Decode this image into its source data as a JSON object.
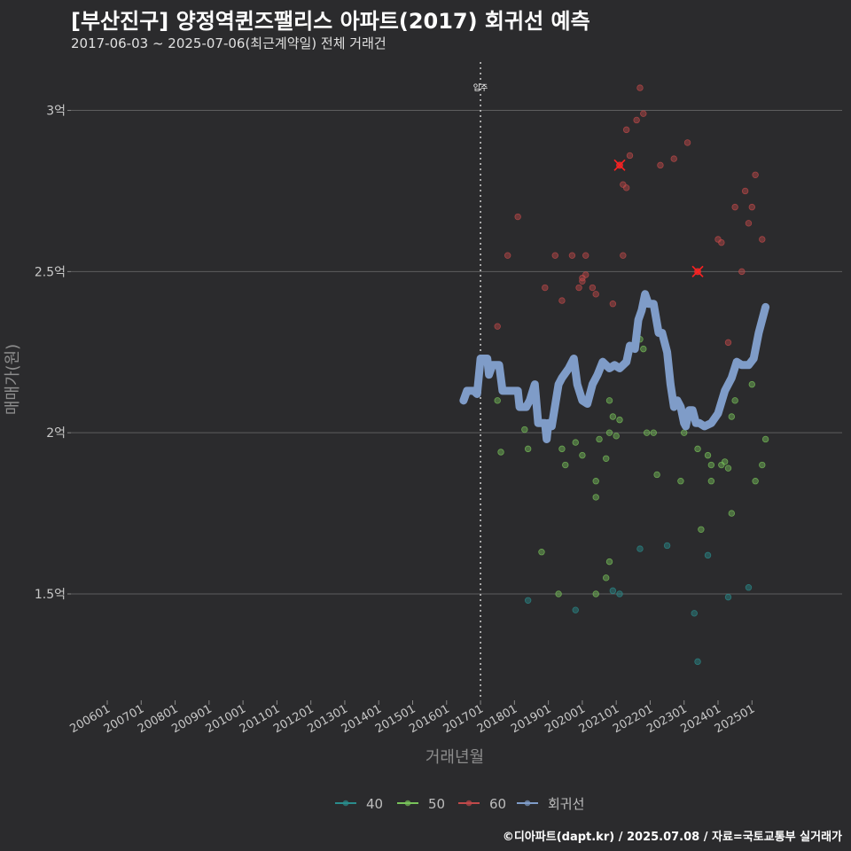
{
  "header": {
    "title": "[부산진구] 양정역퀸즈팰리스 아파트(2017) 회귀선 예측",
    "subtitle": "2017-06-03 ~ 2025-07-06(최근계약일) 전체 거래건"
  },
  "footer": {
    "credit": "©디아파트(dapt.kr) / 2025.07.08 / 자료=국토교통부 실거래가"
  },
  "colors": {
    "background": "#2b2b2d",
    "grid": "#5e5e5e",
    "s40": "#2a8c8c",
    "s50": "#78c25a",
    "s60": "#c0494a",
    "regression": "#7f9cc8",
    "highlight": "#ff2020"
  },
  "chart_data": {
    "type": "scatter",
    "title": "[부산진구] 양정역퀸즈팰리스 아파트(2017) 회귀선 예측",
    "xlabel": "거래년월",
    "ylabel": "매매가(원)",
    "xlim": [
      2006.0,
      2025.75
    ],
    "ylim": [
      1.17,
      3.15
    ],
    "x_ticks": [
      {
        "value": 2006.0,
        "label": "200601"
      },
      {
        "value": 2007.0,
        "label": "200701"
      },
      {
        "value": 2008.0,
        "label": "200801"
      },
      {
        "value": 2009.0,
        "label": "200901"
      },
      {
        "value": 2010.0,
        "label": "201001"
      },
      {
        "value": 2011.0,
        "label": "201101"
      },
      {
        "value": 2012.0,
        "label": "201201"
      },
      {
        "value": 2013.0,
        "label": "201301"
      },
      {
        "value": 2014.0,
        "label": "201401"
      },
      {
        "value": 2015.0,
        "label": "201501"
      },
      {
        "value": 2016.0,
        "label": "201601"
      },
      {
        "value": 2017.0,
        "label": "201701"
      },
      {
        "value": 2018.0,
        "label": "201801"
      },
      {
        "value": 2019.0,
        "label": "201901"
      },
      {
        "value": 2020.0,
        "label": "202001"
      },
      {
        "value": 2021.0,
        "label": "202101"
      },
      {
        "value": 2022.0,
        "label": "202201"
      },
      {
        "value": 2023.0,
        "label": "202301"
      },
      {
        "value": 2024.0,
        "label": "202401"
      },
      {
        "value": 2025.0,
        "label": "202501"
      }
    ],
    "y_ticks": [
      {
        "value": 1.5,
        "label": "1.5억"
      },
      {
        "value": 2.0,
        "label": "2억"
      },
      {
        "value": 2.5,
        "label": "2.5억"
      },
      {
        "value": 3.0,
        "label": "3억"
      }
    ],
    "annotation": {
      "x": 2017.0,
      "label": "입주"
    },
    "legend": [
      {
        "key": "s40",
        "label": "40"
      },
      {
        "key": "s50",
        "label": "50"
      },
      {
        "key": "s60",
        "label": "60"
      },
      {
        "key": "regression",
        "label": "회귀선"
      }
    ],
    "series": [
      {
        "name": "40",
        "key": "s40",
        "points": [
          [
            2018.4,
            1.48
          ],
          [
            2019.8,
            1.45
          ],
          [
            2020.9,
            1.51
          ],
          [
            2021.1,
            1.5
          ],
          [
            2021.7,
            1.64
          ],
          [
            2022.5,
            1.65
          ],
          [
            2023.3,
            1.44
          ],
          [
            2023.4,
            1.29
          ],
          [
            2023.7,
            1.62
          ],
          [
            2024.3,
            1.49
          ],
          [
            2024.9,
            1.52
          ]
        ]
      },
      {
        "name": "50",
        "key": "s50",
        "points": [
          [
            2017.5,
            2.1
          ],
          [
            2017.6,
            1.94
          ],
          [
            2018.3,
            2.01
          ],
          [
            2018.4,
            1.95
          ],
          [
            2018.8,
            1.63
          ],
          [
            2019.3,
            1.5
          ],
          [
            2019.4,
            1.95
          ],
          [
            2019.5,
            1.9
          ],
          [
            2019.8,
            1.97
          ],
          [
            2020.0,
            1.93
          ],
          [
            2020.4,
            1.85
          ],
          [
            2020.4,
            1.8
          ],
          [
            2020.5,
            1.98
          ],
          [
            2020.7,
            1.92
          ],
          [
            2020.8,
            2.0
          ],
          [
            2020.8,
            2.1
          ],
          [
            2020.9,
            2.05
          ],
          [
            2021.0,
            1.99
          ],
          [
            2021.1,
            2.04
          ],
          [
            2021.7,
            2.29
          ],
          [
            2021.8,
            2.26
          ],
          [
            2021.9,
            2.0
          ],
          [
            2022.1,
            2.0
          ],
          [
            2022.2,
            1.87
          ],
          [
            2022.9,
            1.85
          ],
          [
            2023.0,
            2.0
          ],
          [
            2023.4,
            1.95
          ],
          [
            2023.5,
            1.7
          ],
          [
            2023.7,
            1.93
          ],
          [
            2023.8,
            1.9
          ],
          [
            2023.8,
            1.85
          ],
          [
            2024.1,
            1.9
          ],
          [
            2024.2,
            1.91
          ],
          [
            2024.3,
            1.89
          ],
          [
            2024.4,
            1.75
          ],
          [
            2024.5,
            2.1
          ],
          [
            2025.0,
            2.15
          ],
          [
            2025.1,
            1.85
          ],
          [
            2025.3,
            1.9
          ],
          [
            2025.4,
            1.98
          ],
          [
            2024.4,
            2.05
          ],
          [
            2020.7,
            1.55
          ],
          [
            2020.8,
            1.6
          ],
          [
            2020.4,
            1.5
          ]
        ]
      },
      {
        "name": "60",
        "key": "s60",
        "points": [
          [
            2017.5,
            2.33
          ],
          [
            2017.8,
            2.55
          ],
          [
            2018.1,
            2.67
          ],
          [
            2018.9,
            2.45
          ],
          [
            2019.2,
            2.55
          ],
          [
            2019.4,
            2.41
          ],
          [
            2019.7,
            2.55
          ],
          [
            2019.9,
            2.45
          ],
          [
            2020.0,
            2.47
          ],
          [
            2020.0,
            2.48
          ],
          [
            2020.1,
            2.55
          ],
          [
            2020.1,
            2.49
          ],
          [
            2020.3,
            2.45
          ],
          [
            2020.4,
            2.43
          ],
          [
            2020.9,
            2.4
          ],
          [
            2021.1,
            2.83
          ],
          [
            2021.2,
            2.77
          ],
          [
            2021.3,
            2.76
          ],
          [
            2021.3,
            2.94
          ],
          [
            2021.4,
            2.86
          ],
          [
            2021.6,
            2.97
          ],
          [
            2021.8,
            2.99
          ],
          [
            2021.7,
            3.07
          ],
          [
            2021.2,
            2.55
          ],
          [
            2022.3,
            2.83
          ],
          [
            2022.7,
            2.85
          ],
          [
            2023.1,
            2.9
          ],
          [
            2023.4,
            2.5
          ],
          [
            2024.0,
            2.6
          ],
          [
            2024.1,
            2.59
          ],
          [
            2024.3,
            2.28
          ],
          [
            2024.5,
            2.7
          ],
          [
            2024.7,
            2.5
          ],
          [
            2024.8,
            2.75
          ],
          [
            2024.9,
            2.65
          ],
          [
            2025.0,
            2.7
          ],
          [
            2025.1,
            2.8
          ],
          [
            2025.3,
            2.6
          ]
        ]
      }
    ],
    "highlighted": [
      [
        2021.1,
        2.83
      ],
      [
        2023.4,
        2.5
      ]
    ],
    "regression": {
      "name": "회귀선",
      "key": "regression",
      "points": [
        [
          2016.5,
          2.1
        ],
        [
          2016.6,
          2.13
        ],
        [
          2016.8,
          2.13
        ],
        [
          2016.9,
          2.12
        ],
        [
          2017.0,
          2.23
        ],
        [
          2017.2,
          2.23
        ],
        [
          2017.25,
          2.18
        ],
        [
          2017.35,
          2.21
        ],
        [
          2017.55,
          2.21
        ],
        [
          2017.65,
          2.13
        ],
        [
          2017.75,
          2.13
        ],
        [
          2018.1,
          2.13
        ],
        [
          2018.15,
          2.08
        ],
        [
          2018.35,
          2.08
        ],
        [
          2018.45,
          2.1
        ],
        [
          2018.6,
          2.15
        ],
        [
          2018.7,
          2.03
        ],
        [
          2018.9,
          2.03
        ],
        [
          2018.95,
          1.98
        ],
        [
          2019.0,
          2.03
        ],
        [
          2019.1,
          2.02
        ],
        [
          2019.3,
          2.15
        ],
        [
          2019.4,
          2.17
        ],
        [
          2019.6,
          2.2
        ],
        [
          2019.75,
          2.23
        ],
        [
          2019.85,
          2.15
        ],
        [
          2020.0,
          2.1
        ],
        [
          2020.15,
          2.09
        ],
        [
          2020.3,
          2.15
        ],
        [
          2020.45,
          2.18
        ],
        [
          2020.6,
          2.22
        ],
        [
          2020.8,
          2.2
        ],
        [
          2020.95,
          2.21
        ],
        [
          2021.1,
          2.2
        ],
        [
          2021.3,
          2.22
        ],
        [
          2021.4,
          2.27
        ],
        [
          2021.55,
          2.26
        ],
        [
          2021.65,
          2.35
        ],
        [
          2021.75,
          2.38
        ],
        [
          2021.85,
          2.43
        ],
        [
          2021.95,
          2.4
        ],
        [
          2022.1,
          2.4
        ],
        [
          2022.25,
          2.31
        ],
        [
          2022.35,
          2.31
        ],
        [
          2022.5,
          2.25
        ],
        [
          2022.6,
          2.15
        ],
        [
          2022.7,
          2.08
        ],
        [
          2022.8,
          2.1
        ],
        [
          2022.9,
          2.08
        ],
        [
          2023.0,
          2.03
        ],
        [
          2023.05,
          2.02
        ],
        [
          2023.15,
          2.07
        ],
        [
          2023.25,
          2.07
        ],
        [
          2023.35,
          2.03
        ],
        [
          2023.45,
          2.03
        ],
        [
          2023.6,
          2.02
        ],
        [
          2023.8,
          2.03
        ],
        [
          2024.0,
          2.06
        ],
        [
          2024.2,
          2.13
        ],
        [
          2024.4,
          2.17
        ],
        [
          2024.55,
          2.22
        ],
        [
          2024.7,
          2.21
        ],
        [
          2024.9,
          2.21
        ],
        [
          2025.05,
          2.23
        ],
        [
          2025.2,
          2.31
        ],
        [
          2025.4,
          2.39
        ]
      ]
    }
  }
}
